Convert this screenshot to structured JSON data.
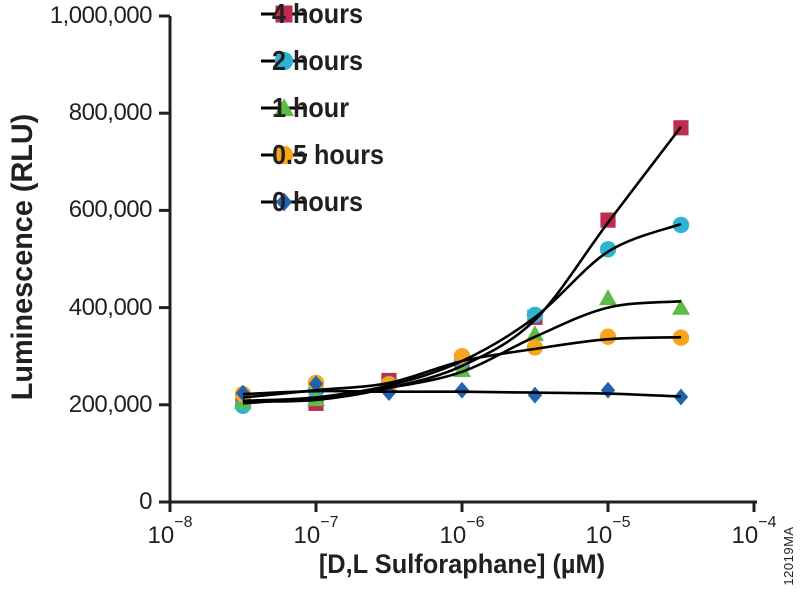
{
  "part_number": "12019MA",
  "colors": {
    "background": "#ffffff",
    "axis": "#231f20",
    "fit_line": "#000000",
    "text": "#231f20"
  },
  "chart_data": {
    "type": "scatter",
    "title": "",
    "xlabel": "[D,L Sulforaphane] (µM)",
    "ylabel": "Luminescence (RLU)",
    "x_scale": "log10",
    "xlim_exponents": [
      -8,
      -4
    ],
    "ylim": [
      0,
      1000000
    ],
    "grid": false,
    "legend_position": "top-left-inside",
    "y_ticks": [
      {
        "label": "1,000,000",
        "value": 1000000
      },
      {
        "label": "800,000",
        "value": 800000
      },
      {
        "label": "600,000",
        "value": 600000
      },
      {
        "label": "400,000",
        "value": 400000
      },
      {
        "label": "200,000",
        "value": 200000
      },
      {
        "label": "0",
        "value": 0
      }
    ],
    "x_ticks": [
      {
        "base": "10",
        "exponent": "−8"
      },
      {
        "base": "10",
        "exponent": "−7"
      },
      {
        "base": "10",
        "exponent": "−6"
      },
      {
        "base": "10",
        "exponent": "−5"
      },
      {
        "base": "10",
        "exponent": "−4"
      }
    ],
    "x": [
      3.16e-08,
      1e-07,
      3.16e-07,
      1e-06,
      3.16e-06,
      1e-05,
      3.16e-05
    ],
    "series": [
      {
        "name": "4 hours",
        "marker": "square",
        "color": "#be2c4e",
        "values": [
          212000,
          203000,
          250000,
          287000,
          380000,
          580000,
          770000
        ],
        "fit_values": [
          207000,
          210000,
          235000,
          280000,
          375000,
          575000,
          772000
        ]
      },
      {
        "name": "2 hours",
        "marker": "circle",
        "color": "#2bb4d4",
        "values": [
          198000,
          230000,
          243000,
          290000,
          385000,
          520000,
          570000
        ],
        "fit_values": [
          203000,
          215000,
          240000,
          290000,
          380000,
          515000,
          572000
        ]
      },
      {
        "name": "1 hour",
        "marker": "triangle",
        "color": "#5fba46",
        "values": [
          207000,
          212000,
          240000,
          272000,
          346000,
          420000,
          400000
        ],
        "fit_values": [
          208000,
          215000,
          235000,
          268000,
          340000,
          400000,
          413000
        ]
      },
      {
        "name": "0.5 hours",
        "marker": "circle",
        "color": "#f8a41c",
        "values": [
          222000,
          245000,
          242000,
          300000,
          318000,
          340000,
          338000
        ],
        "fit_values": [
          215000,
          230000,
          245000,
          290000,
          315000,
          335000,
          339000
        ]
      },
      {
        "name": "0 hours",
        "marker": "diamond",
        "color": "#1e64af",
        "values": [
          224000,
          243000,
          225000,
          230000,
          220000,
          230000,
          216000
        ],
        "fit_values": [
          222000,
          228000,
          227000,
          227000,
          225000,
          223000,
          217000
        ]
      }
    ]
  }
}
